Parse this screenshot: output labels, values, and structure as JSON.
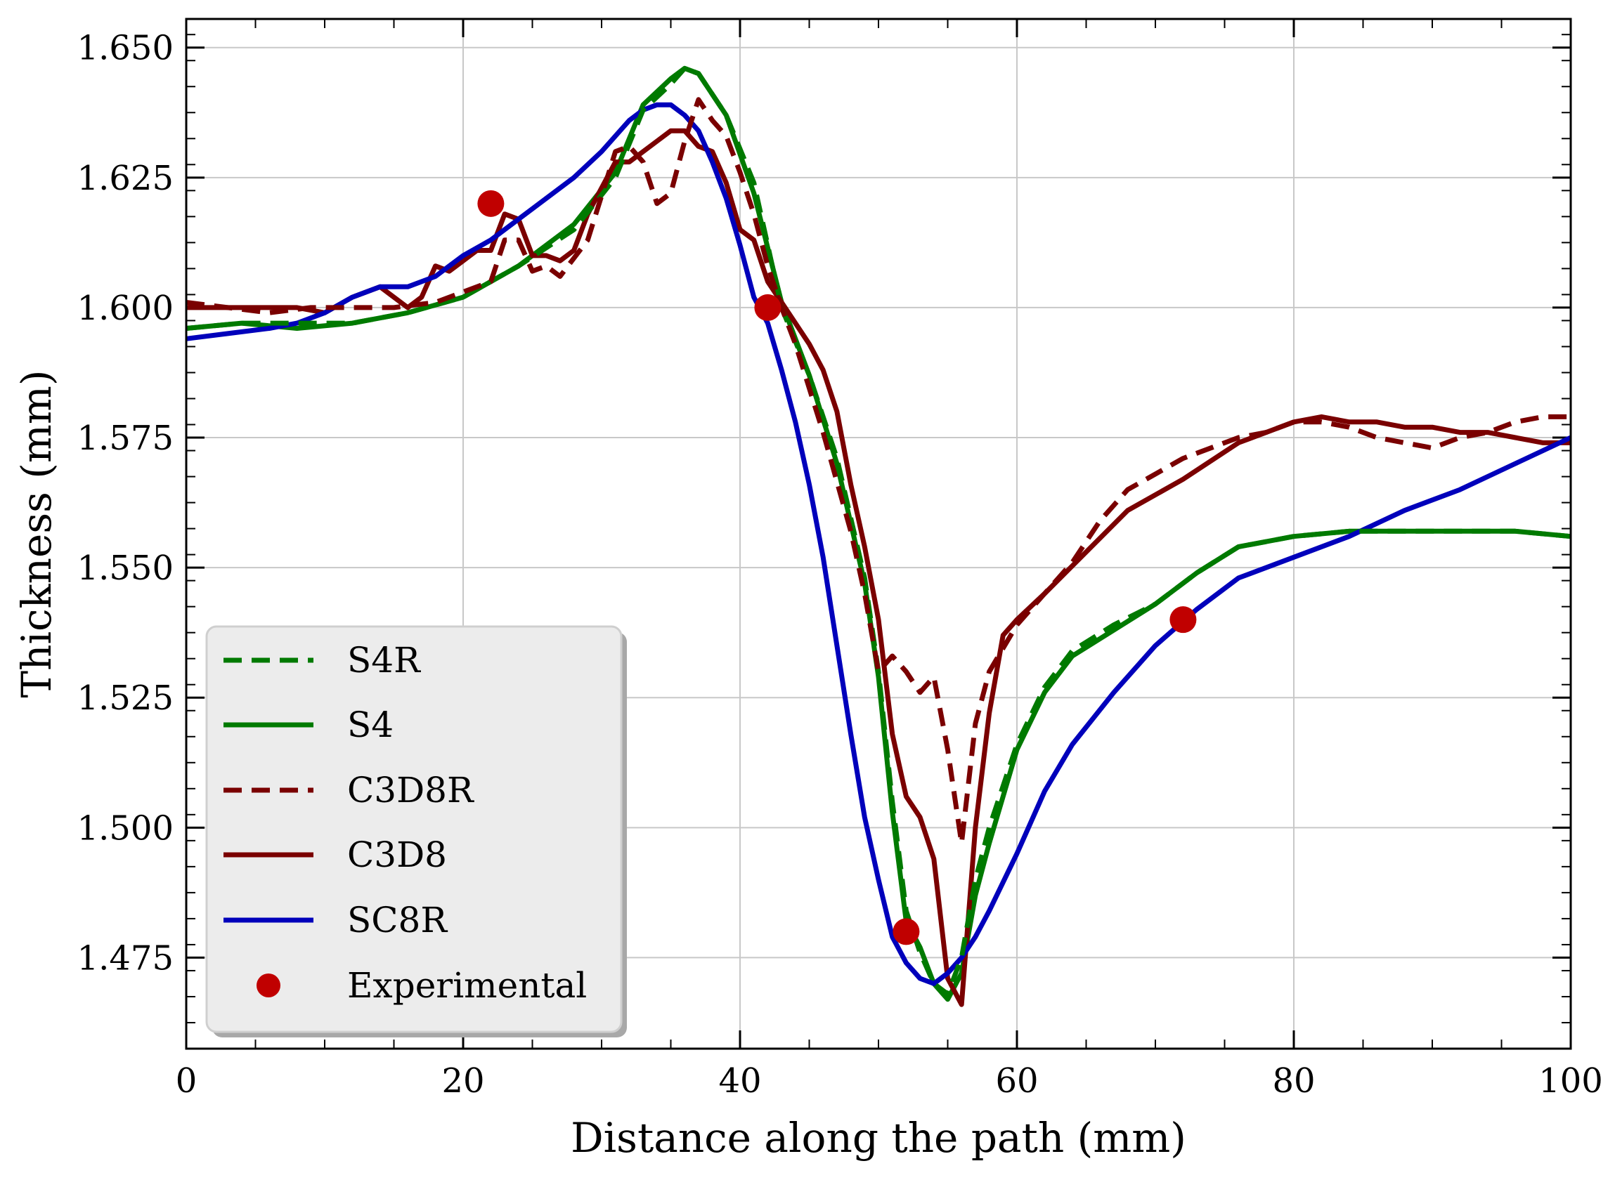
{
  "chart_data": {
    "type": "line",
    "title": "",
    "xlabel": "Distance along the path (mm)",
    "ylabel": "Thickness (mm)",
    "xlim": [
      0,
      100
    ],
    "ylim": [
      1.4575,
      1.6555
    ],
    "xticks": [
      0,
      20,
      40,
      60,
      80,
      100
    ],
    "xtick_labels": [
      "0",
      "20",
      "40",
      "60",
      "80",
      "100"
    ],
    "yticks": [
      1.475,
      1.5,
      1.525,
      1.55,
      1.575,
      1.6,
      1.625,
      1.65
    ],
    "ytick_labels": [
      "1.475",
      "1.500",
      "1.525",
      "1.550",
      "1.575",
      "1.600",
      "1.625",
      "1.650"
    ],
    "grid": true,
    "legend_position": "lower-left",
    "series": [
      {
        "name": "S4R",
        "color": "#007a00",
        "style": "dashed",
        "x": [
          0,
          4,
          8,
          12,
          16,
          20,
          24,
          28,
          31,
          33,
          35,
          36,
          37,
          39,
          41,
          43,
          45,
          47,
          49,
          50,
          51,
          52,
          53,
          54,
          55,
          56,
          57,
          58,
          60,
          62,
          64,
          67,
          70,
          73,
          76,
          80,
          84,
          88,
          92,
          96,
          100
        ],
        "y": [
          1.596,
          1.597,
          1.597,
          1.597,
          1.599,
          1.602,
          1.608,
          1.615,
          1.625,
          1.638,
          1.643,
          1.646,
          1.645,
          1.637,
          1.624,
          1.6,
          1.587,
          1.571,
          1.548,
          1.53,
          1.505,
          1.484,
          1.476,
          1.47,
          1.468,
          1.475,
          1.49,
          1.5,
          1.516,
          1.527,
          1.534,
          1.539,
          1.543,
          1.549,
          1.554,
          1.556,
          1.557,
          1.557,
          1.557,
          1.557,
          1.556
        ]
      },
      {
        "name": "S4",
        "color": "#007a00",
        "style": "solid",
        "x": [
          0,
          4,
          8,
          12,
          16,
          20,
          24,
          28,
          31,
          33,
          35,
          36,
          37,
          39,
          41,
          43,
          45,
          47,
          49,
          50,
          51,
          52,
          53,
          54,
          55,
          56,
          57,
          58,
          60,
          62,
          64,
          67,
          70,
          73,
          76,
          80,
          84,
          88,
          92,
          96,
          100
        ],
        "y": [
          1.596,
          1.597,
          1.596,
          1.597,
          1.599,
          1.602,
          1.608,
          1.616,
          1.626,
          1.639,
          1.644,
          1.646,
          1.645,
          1.637,
          1.622,
          1.601,
          1.587,
          1.57,
          1.547,
          1.529,
          1.503,
          1.482,
          1.477,
          1.47,
          1.467,
          1.472,
          1.487,
          1.497,
          1.515,
          1.526,
          1.533,
          1.538,
          1.543,
          1.549,
          1.554,
          1.556,
          1.557,
          1.557,
          1.557,
          1.557,
          1.556
        ]
      },
      {
        "name": "C3D8R",
        "color": "#7a0000",
        "style": "dashed",
        "x": [
          0,
          3,
          6,
          9,
          12,
          15,
          18,
          20,
          22,
          23,
          24,
          25,
          26,
          27,
          29,
          31,
          32,
          33,
          34,
          35,
          36,
          37,
          38,
          39,
          40,
          41,
          42,
          43,
          44,
          46,
          48,
          49,
          50,
          51,
          52,
          53,
          54,
          55,
          56,
          57,
          58,
          60,
          62,
          64,
          66,
          68,
          70,
          72,
          74,
          76,
          78,
          80,
          82,
          84,
          86,
          88,
          90,
          92,
          94,
          96,
          98,
          100
        ],
        "y": [
          1.601,
          1.6,
          1.599,
          1.6,
          1.6,
          1.6,
          1.601,
          1.603,
          1.605,
          1.613,
          1.613,
          1.607,
          1.608,
          1.606,
          1.613,
          1.63,
          1.631,
          1.628,
          1.62,
          1.622,
          1.632,
          1.64,
          1.636,
          1.633,
          1.626,
          1.618,
          1.608,
          1.6,
          1.593,
          1.576,
          1.557,
          1.545,
          1.53,
          1.533,
          1.53,
          1.526,
          1.529,
          1.515,
          1.497,
          1.52,
          1.53,
          1.539,
          1.545,
          1.551,
          1.559,
          1.565,
          1.568,
          1.571,
          1.573,
          1.575,
          1.576,
          1.578,
          1.578,
          1.577,
          1.575,
          1.574,
          1.573,
          1.575,
          1.576,
          1.578,
          1.579,
          1.579
        ]
      },
      {
        "name": "C3D8",
        "color": "#7a0000",
        "style": "solid",
        "x": [
          0,
          3,
          6,
          8,
          10,
          12,
          14,
          16,
          17,
          18,
          19,
          20,
          21,
          22,
          23,
          24,
          25,
          26,
          27,
          28,
          29,
          30,
          31,
          32,
          33,
          34,
          35,
          36,
          37,
          38,
          39,
          40,
          41,
          42,
          43,
          44,
          45,
          46,
          47,
          48,
          49,
          50,
          51,
          52,
          53,
          54,
          55,
          56,
          57,
          58,
          59,
          60,
          62,
          65,
          68,
          72,
          76,
          80,
          82,
          84,
          86,
          88,
          90,
          92,
          94,
          96,
          98,
          100
        ],
        "y": [
          1.6,
          1.6,
          1.6,
          1.6,
          1.599,
          1.602,
          1.604,
          1.6,
          1.602,
          1.608,
          1.607,
          1.609,
          1.611,
          1.611,
          1.618,
          1.617,
          1.61,
          1.61,
          1.609,
          1.611,
          1.618,
          1.623,
          1.628,
          1.628,
          1.63,
          1.632,
          1.634,
          1.634,
          1.631,
          1.63,
          1.624,
          1.615,
          1.613,
          1.605,
          1.601,
          1.597,
          1.593,
          1.588,
          1.58,
          1.566,
          1.554,
          1.54,
          1.518,
          1.506,
          1.502,
          1.494,
          1.471,
          1.466,
          1.5,
          1.522,
          1.537,
          1.54,
          1.545,
          1.553,
          1.561,
          1.567,
          1.574,
          1.578,
          1.579,
          1.578,
          1.578,
          1.577,
          1.577,
          1.576,
          1.576,
          1.575,
          1.574,
          1.574
        ]
      },
      {
        "name": "SC8R",
        "color": "#0000bb",
        "style": "solid",
        "x": [
          0,
          3,
          6,
          8,
          10,
          12,
          14,
          16,
          18,
          20,
          22,
          24,
          26,
          28,
          30,
          32,
          33,
          34,
          35,
          36,
          37,
          38,
          39,
          40,
          41,
          42,
          43,
          44,
          45,
          46,
          47,
          48,
          49,
          50,
          51,
          52,
          53,
          54,
          55,
          56,
          57,
          58,
          60,
          62,
          64,
          67,
          70,
          73,
          76,
          80,
          84,
          88,
          92,
          96,
          100
        ],
        "y": [
          1.594,
          1.595,
          1.596,
          1.597,
          1.599,
          1.602,
          1.604,
          1.604,
          1.606,
          1.61,
          1.613,
          1.617,
          1.621,
          1.625,
          1.63,
          1.636,
          1.638,
          1.639,
          1.639,
          1.637,
          1.634,
          1.628,
          1.621,
          1.612,
          1.602,
          1.597,
          1.588,
          1.578,
          1.566,
          1.552,
          1.535,
          1.518,
          1.502,
          1.49,
          1.479,
          1.474,
          1.471,
          1.47,
          1.472,
          1.475,
          1.479,
          1.484,
          1.495,
          1.507,
          1.516,
          1.526,
          1.535,
          1.542,
          1.548,
          1.552,
          1.556,
          1.561,
          1.565,
          1.57,
          1.575
        ]
      }
    ],
    "scatter": {
      "name": "Experimental",
      "color": "#c00000",
      "x": [
        22,
        42,
        52,
        72
      ],
      "y": [
        1.62,
        1.6,
        1.48,
        1.54
      ]
    }
  }
}
